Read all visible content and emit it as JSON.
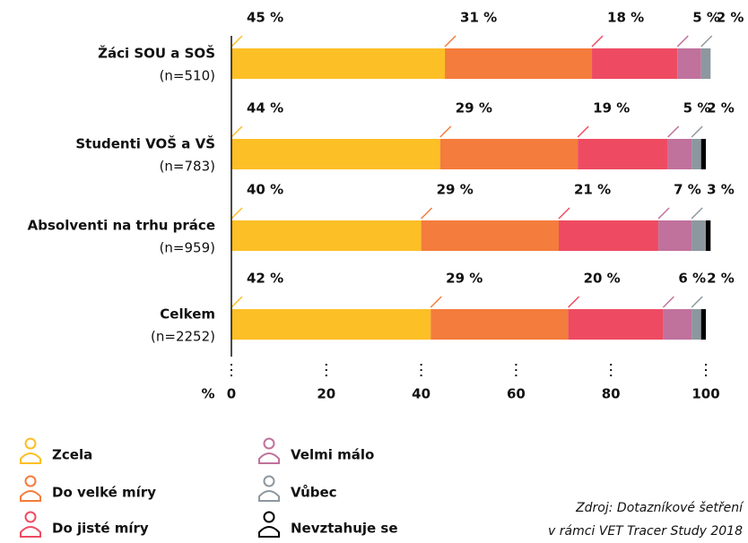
{
  "chart_data": {
    "type": "stacked-barh",
    "categories": [
      "Žáci SOU a SOŠ",
      "Studenti VOŠ a VŠ",
      "Absolventi na trhu práce",
      "Celkem"
    ],
    "category_notes": [
      "(n=510)",
      "(n=783)",
      "(n=959)",
      "(n=2252)"
    ],
    "series": [
      {
        "name": "Zcela",
        "color": "#fcbf26",
        "values": [
          45,
          44,
          40,
          42
        ],
        "value_labels": [
          "45 %",
          "44 %",
          "40 %",
          "42 %"
        ]
      },
      {
        "name": "Do velké míry",
        "color": "#f47c3c",
        "values": [
          31,
          29,
          29,
          29
        ],
        "value_labels": [
          "31 %",
          "29 %",
          "29 %",
          "29 %"
        ]
      },
      {
        "name": "Do jisté míry",
        "color": "#ee4b62",
        "values": [
          18,
          19,
          21,
          20
        ],
        "value_labels": [
          "18 %",
          "19 %",
          "21 %",
          "20 %"
        ]
      },
      {
        "name": "Velmi málo",
        "color": "#c0719c",
        "values": [
          5,
          5,
          7,
          6
        ],
        "value_labels": [
          "5 %",
          "5 %",
          "7 %",
          "6 %"
        ]
      },
      {
        "name": "Vůbec",
        "color": "#8d979f",
        "values": [
          2,
          2,
          3,
          2
        ],
        "value_labels": [
          "2 %",
          "2 %",
          "3 %",
          "2 %"
        ]
      },
      {
        "name": "Nevztahuje se",
        "color": "#000000",
        "values": [
          0,
          1,
          1,
          1
        ]
      }
    ],
    "xlabel": "%",
    "xlim": [
      0,
      100
    ],
    "xticks": [
      0,
      20,
      40,
      60,
      80,
      100
    ],
    "source": [
      "Zdroj: Dotazníkové šetření",
      "v rámci VET Tracer Study 2018"
    ]
  }
}
